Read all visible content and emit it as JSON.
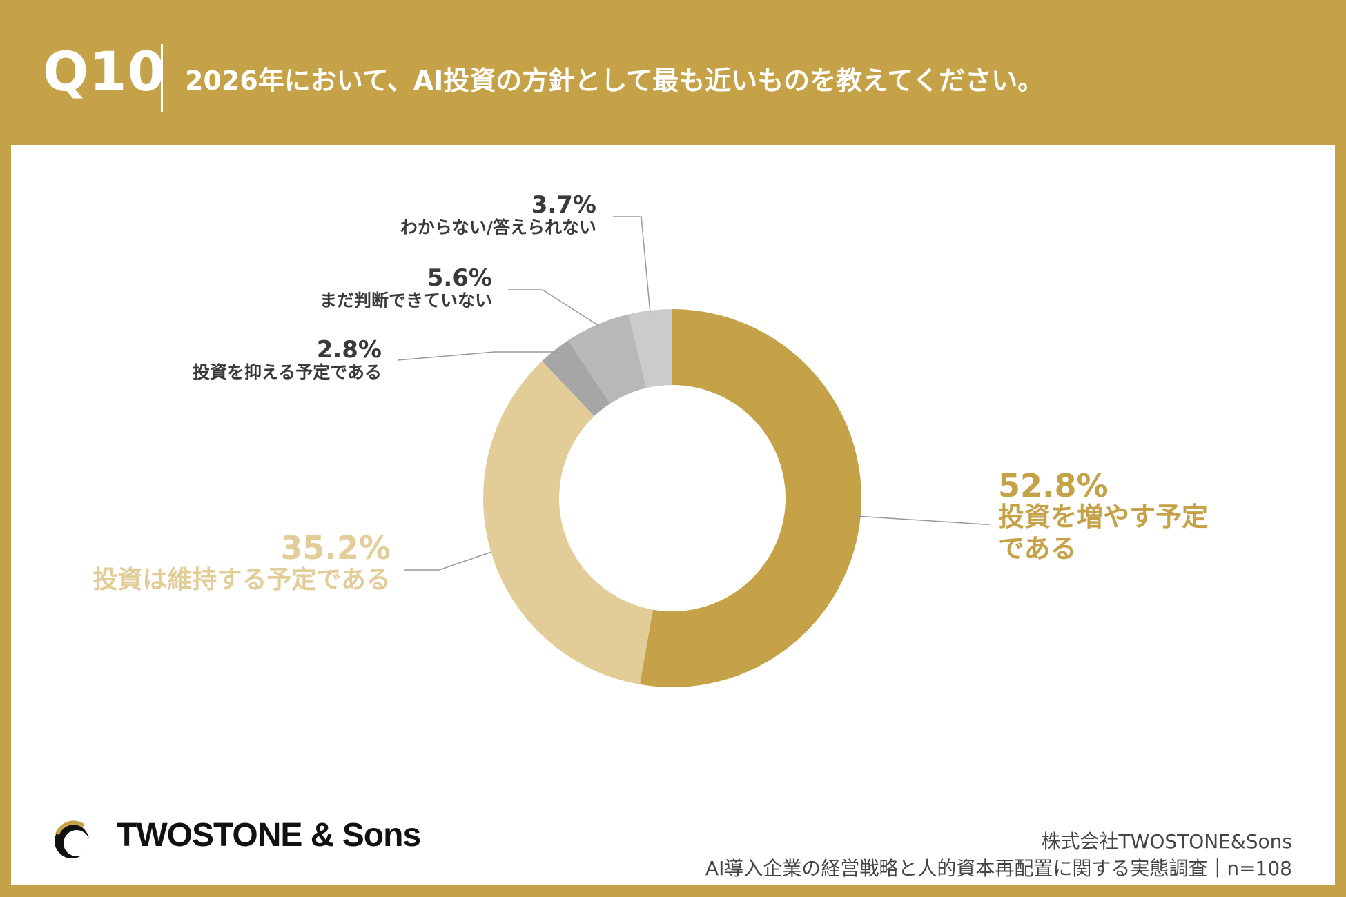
{
  "header": {
    "question_number": "Q10",
    "question_text": "2026年において、AI投資の方針として最も近いものを教えてください。"
  },
  "colors": {
    "background": "#c5a247",
    "panel": "#ffffff",
    "slice_increase": "#c5a247",
    "slice_maintain": "#e2cc98",
    "slice_restrain": "#a6a6a6",
    "slice_undecided": "#b8b8b8",
    "slice_unknown": "#cbcbcb",
    "label_dark": "#3a3a3a"
  },
  "chart_data": {
    "type": "pie",
    "donut": true,
    "slices": [
      {
        "label_lines": [
          "投資を増やす予定",
          "である"
        ],
        "value": 52.8,
        "value_text": "52.8%"
      },
      {
        "label_lines": [
          "投資は維持する予定である"
        ],
        "value": 35.2,
        "value_text": "35.2%"
      },
      {
        "label_lines": [
          "投資を抑える予定である"
        ],
        "value": 2.8,
        "value_text": "2.8%"
      },
      {
        "label_lines": [
          "まだ判断できていない"
        ],
        "value": 5.6,
        "value_text": "5.6%"
      },
      {
        "label_lines": [
          "わからない/答えられない"
        ],
        "value": 3.7,
        "value_text": "3.7%"
      }
    ]
  },
  "logo": {
    "text": "TWOSTONE & Sons",
    "icon": "crescent-logo-icon"
  },
  "source": {
    "company": "株式会社TWOSTONE&Sons",
    "survey": "AI導入企業の経営戦略と人的資本再配置に関する実態調査｜n=108"
  }
}
